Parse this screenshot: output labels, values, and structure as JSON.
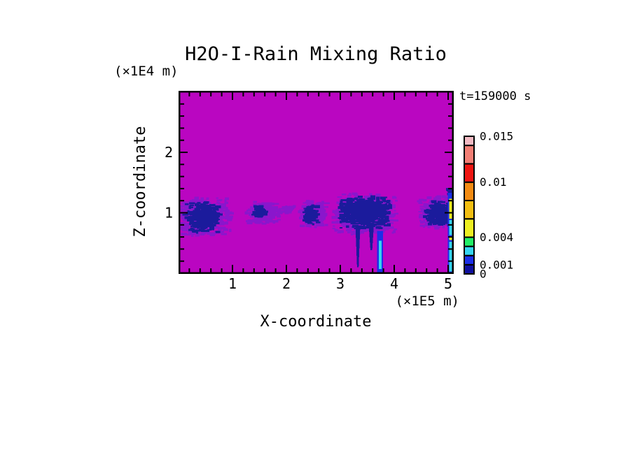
{
  "figure": {
    "title": "H2O-I-Rain Mixing Ratio",
    "time_label": "t=159000 s",
    "x_axis": {
      "label": "X-coordinate",
      "unit_label": "(×1E5 m)",
      "tick_values": [
        1,
        2,
        3,
        4,
        5
      ],
      "minor_step": 0.2,
      "range": [
        0,
        5.1
      ]
    },
    "z_axis": {
      "label": "Z-coordinate",
      "unit_label": "(×1E4 m)",
      "tick_values": [
        1,
        2
      ],
      "minor_step": 0.2,
      "range": [
        0,
        3.03
      ]
    },
    "colors": {
      "page_background": "#FFFFFF",
      "frame": "#000000",
      "text": "#000000",
      "field_background": "#BA06C1",
      "cloud_light": "#8A16CC",
      "cloud_dark": "#1B1B9C",
      "streak_blue": "#1C2FE8",
      "streak_cyan": "#35D5F0",
      "streak_yellow": "#EDEE21"
    }
  },
  "chart_data": {
    "type": "heatmap",
    "title": "H2O-I-Rain Mixing Ratio",
    "xlabel": "X-coordinate (×1E5 m)",
    "ylabel": "Z-coordinate (×1E4 m)",
    "annotation": "t=159000 s",
    "x_range": [
      0,
      5.1
    ],
    "z_range": [
      0,
      3.03
    ],
    "background_value": 0,
    "colorbar": {
      "levels": [
        0,
        0.001,
        0.002,
        0.003,
        0.004,
        0.006,
        0.008,
        0.01,
        0.012,
        0.014,
        0.015
      ],
      "colors": [
        "#0F0F9E",
        "#1C2FE8",
        "#35D5F0",
        "#21EE66",
        "#EDEE21",
        "#F2BE11",
        "#F28A11",
        "#EE1511",
        "#F27E74",
        "#F2BAC3"
      ],
      "tick_labels": [
        {
          "value": 0.015,
          "text": "0.015"
        },
        {
          "value": 0.01,
          "text": "0.01"
        },
        {
          "value": 0.004,
          "text": "0.004"
        },
        {
          "value": 0.001,
          "text": "0.001"
        },
        {
          "value": 0,
          "text": "0"
        }
      ]
    },
    "features": {
      "description": "Shallow rain band near z = 1 (x1E4 m) with embedded heavier cells and narrow precipitation shafts reaching the surface",
      "clouds": [
        {
          "x": 0.49,
          "z": 0.94,
          "rx": 0.52,
          "ry": 0.33,
          "color": "light"
        },
        {
          "x": 1.58,
          "z": 1.0,
          "rx": 0.33,
          "ry": 0.2,
          "color": "light"
        },
        {
          "x": 2.03,
          "z": 1.06,
          "rx": 0.13,
          "ry": 0.08,
          "color": "light"
        },
        {
          "x": 2.5,
          "z": 0.97,
          "rx": 0.28,
          "ry": 0.24,
          "color": "light"
        },
        {
          "x": 3.47,
          "z": 0.97,
          "rx": 0.62,
          "ry": 0.35,
          "color": "light"
        },
        {
          "x": 4.8,
          "z": 1.0,
          "rx": 0.36,
          "ry": 0.28,
          "color": "light"
        },
        {
          "x": 0.45,
          "z": 0.92,
          "rx": 0.33,
          "ry": 0.26,
          "color": "dark"
        },
        {
          "x": 1.52,
          "z": 1.02,
          "rx": 0.12,
          "ry": 0.09,
          "color": "dark"
        },
        {
          "x": 2.46,
          "z": 0.97,
          "rx": 0.14,
          "ry": 0.18,
          "color": "dark"
        },
        {
          "x": 3.47,
          "z": 1.0,
          "rx": 0.52,
          "ry": 0.28,
          "color": "dark"
        },
        {
          "x": 4.83,
          "z": 0.98,
          "rx": 0.27,
          "ry": 0.22,
          "color": "dark"
        },
        {
          "x": 5.05,
          "z": 1.35,
          "rx": 0.07,
          "ry": 0.07,
          "color": "dark"
        }
      ],
      "streaks": [
        {
          "x": 3.325,
          "w": 0.09,
          "z_top": 0.78,
          "z_bottom": 0.1,
          "color": "dark",
          "taper": true
        },
        {
          "x": 3.575,
          "w": 0.1,
          "z_top": 0.83,
          "z_bottom": 0.38,
          "color": "dark",
          "taper": true
        },
        {
          "x": 3.74,
          "w": 0.11,
          "z_top": 0.7,
          "z_bottom": 0.0,
          "color": "blue"
        },
        {
          "x": 3.74,
          "w": 0.05,
          "z_top": 0.54,
          "z_bottom": 0.07,
          "color": "cyan"
        },
        {
          "x": 5.05,
          "w": 0.11,
          "z_top": 1.33,
          "z_bottom": 0.0,
          "color": "blue"
        },
        {
          "x": 5.05,
          "w": 0.055,
          "z_top": 1.23,
          "z_bottom": 0.9,
          "color": "yellow"
        },
        {
          "x": 5.05,
          "w": 0.055,
          "z_top": 0.88,
          "z_bottom": 0.63,
          "color": "cyan"
        },
        {
          "x": 5.05,
          "w": 0.055,
          "z_top": 0.6,
          "z_bottom": 0.55,
          "color": "yellow"
        },
        {
          "x": 5.05,
          "w": 0.055,
          "z_top": 0.52,
          "z_bottom": 0.03,
          "color": "cyan"
        }
      ]
    }
  }
}
